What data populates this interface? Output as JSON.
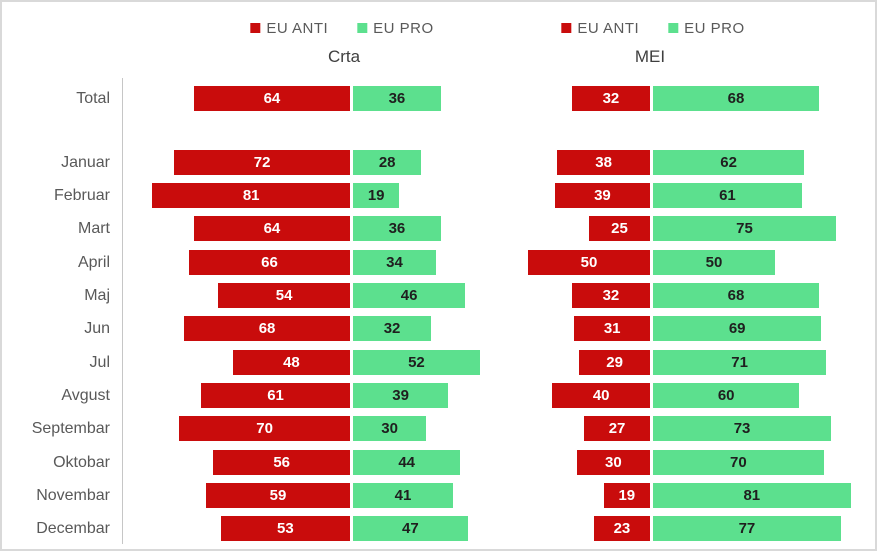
{
  "colors": {
    "anti_red": "#C90C0C",
    "pro_green": "#5CE08E",
    "value_on_anti": "#FFFFFF",
    "value_on_pro": "#1F1F1F",
    "label_gray": "#595959",
    "axis_gray": "#C6C6C6",
    "border_gray": "#D9D9D9"
  },
  "chart_data": [
    {
      "type": "bar",
      "orientation": "horizontal",
      "stacked": true,
      "title": "Crta",
      "legend_position": "top",
      "legend": [
        "EU ANTI",
        "EU PRO"
      ],
      "value_labels": true,
      "xlim": [
        0,
        100
      ],
      "grid": false,
      "categories": [
        "Total",
        "Januar",
        "Februar",
        "Mart",
        "April",
        "Maj",
        "Jun",
        "Jul",
        "Avgust",
        "Septembar",
        "Oktobar",
        "Novembar",
        "Decembar"
      ],
      "series": [
        {
          "name": "EU ANTI",
          "color": "#C90C0C",
          "values": [
            64,
            72,
            81,
            64,
            66,
            54,
            68,
            48,
            61,
            70,
            56,
            59,
            53
          ]
        },
        {
          "name": "EU PRO",
          "color": "#5CE08E",
          "values": [
            36,
            28,
            19,
            36,
            34,
            46,
            32,
            52,
            39,
            30,
            44,
            41,
            47
          ]
        }
      ]
    },
    {
      "type": "bar",
      "orientation": "horizontal",
      "stacked": true,
      "title": "MEI",
      "legend_position": "top",
      "legend": [
        "EU ANTI",
        "EU PRO"
      ],
      "value_labels": true,
      "xlim": [
        0,
        100
      ],
      "grid": false,
      "categories": [
        "Total",
        "Januar",
        "Februar",
        "Mart",
        "April",
        "Maj",
        "Jun",
        "Jul",
        "Avgust",
        "Septembar",
        "Oktobar",
        "Novembar",
        "Decembar"
      ],
      "series": [
        {
          "name": "EU ANTI",
          "color": "#C90C0C",
          "values": [
            32,
            38,
            39,
            25,
            50,
            32,
            31,
            29,
            40,
            27,
            30,
            19,
            23
          ]
        },
        {
          "name": "EU PRO",
          "color": "#5CE08E",
          "values": [
            68,
            62,
            61,
            75,
            50,
            68,
            69,
            71,
            60,
            73,
            70,
            81,
            77
          ]
        }
      ]
    }
  ]
}
